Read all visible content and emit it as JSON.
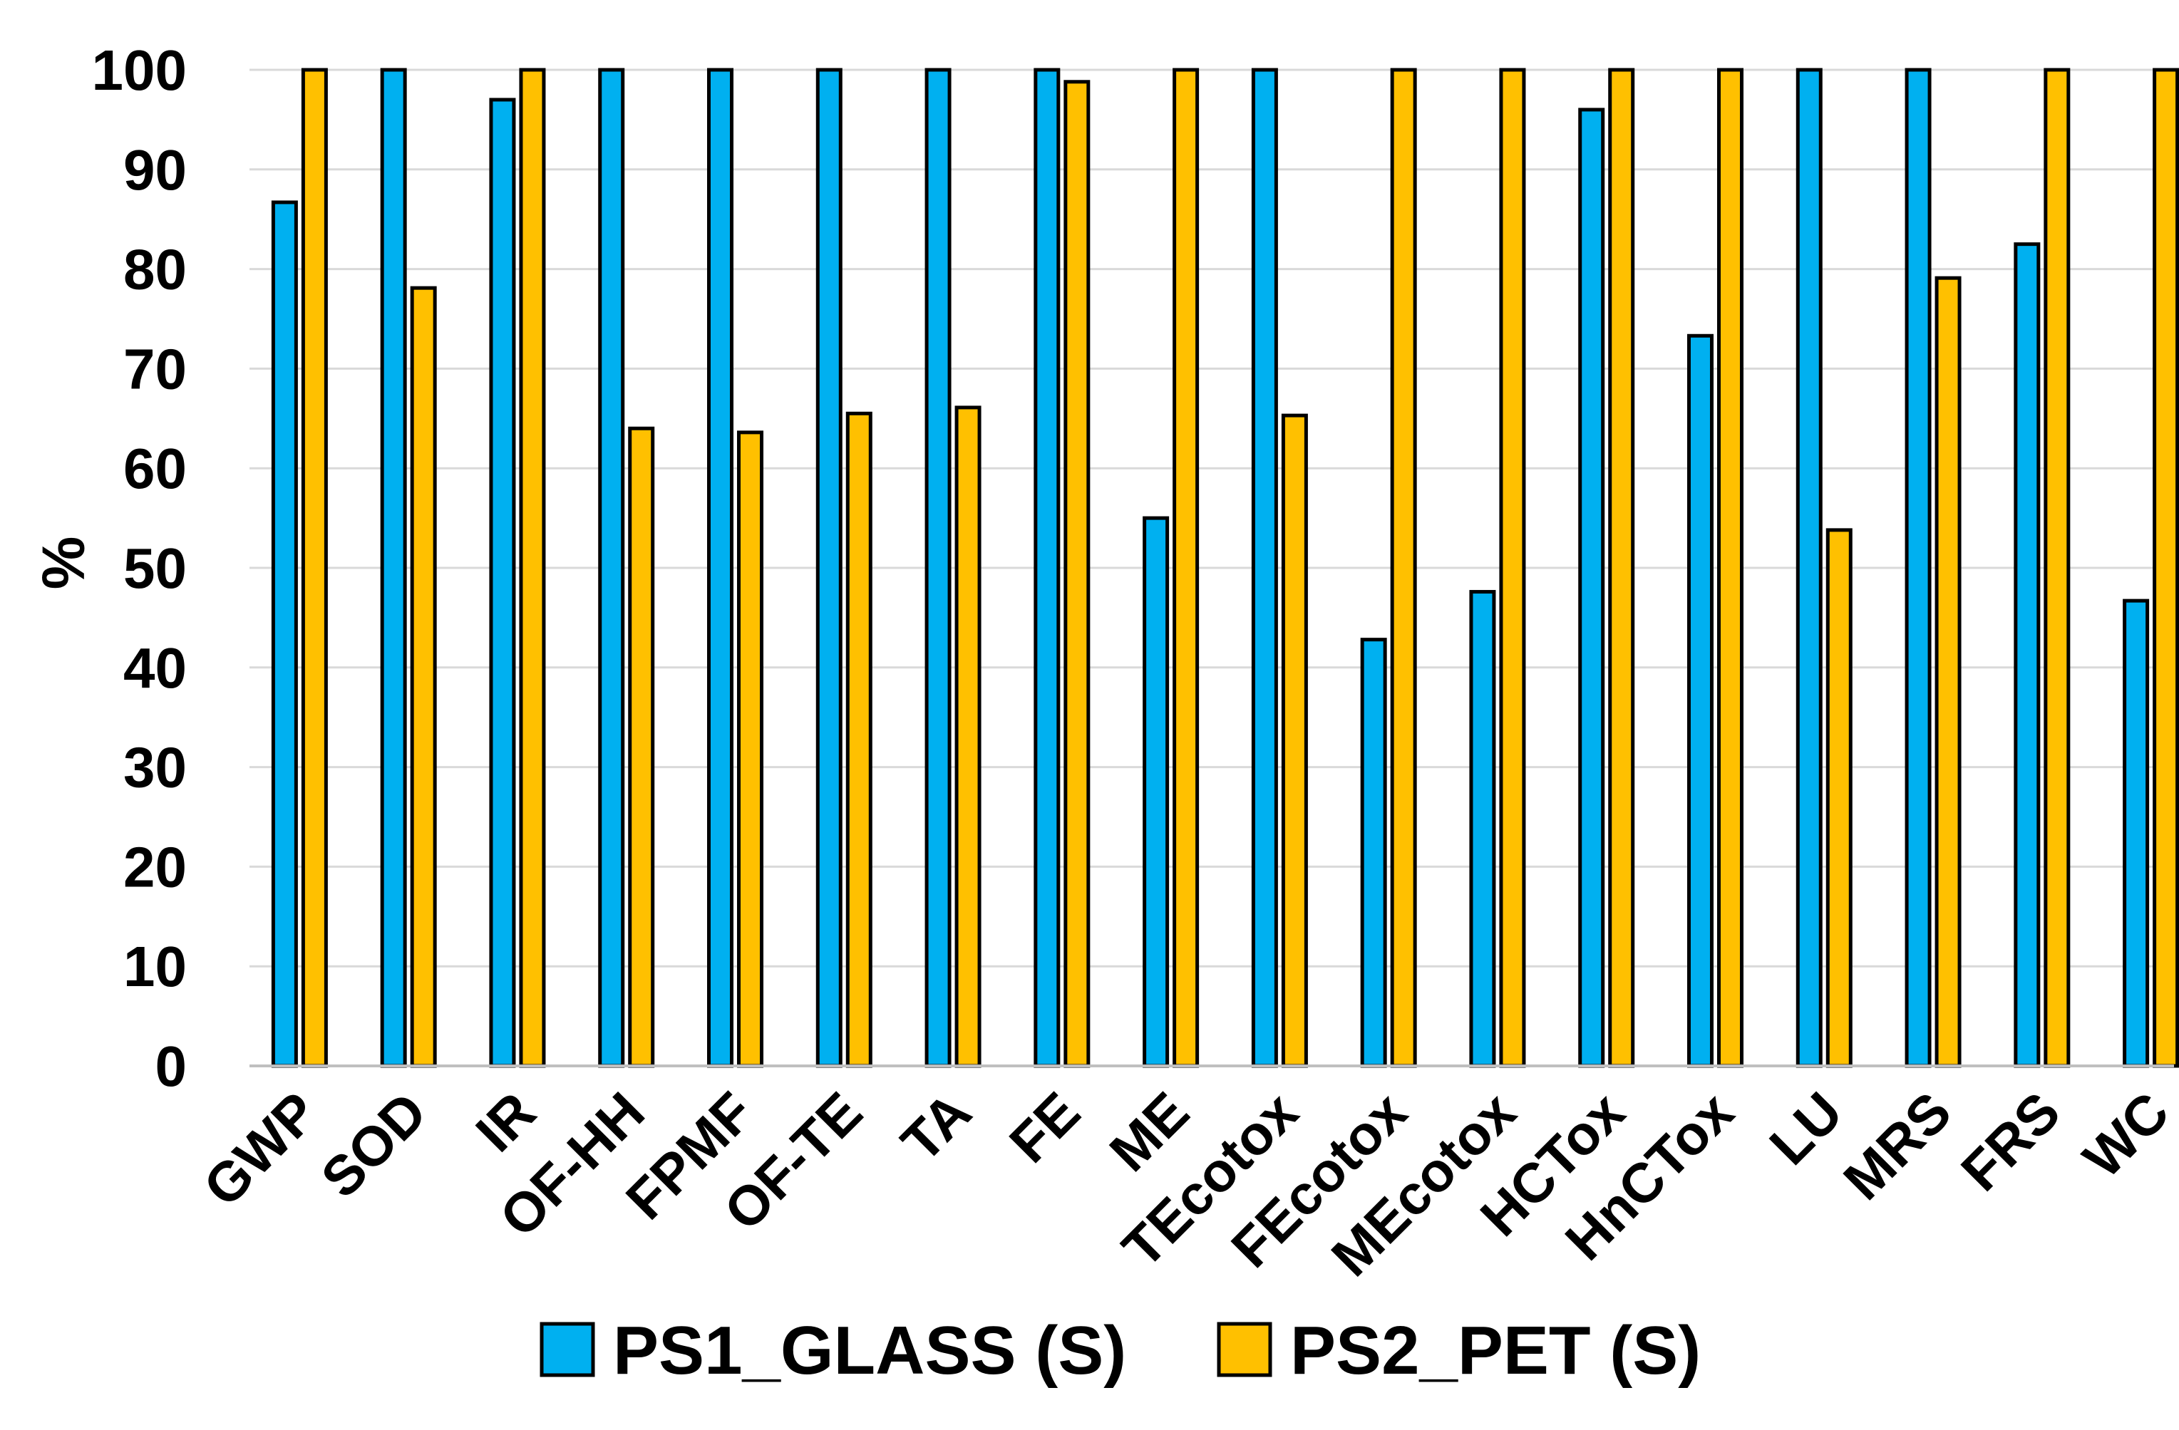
{
  "chart_data": {
    "type": "bar",
    "title": "",
    "xlabel": "",
    "ylabel": "%",
    "ylim": [
      0,
      100
    ],
    "yticks": [
      0,
      10,
      20,
      30,
      40,
      50,
      60,
      70,
      80,
      90,
      100
    ],
    "grid": true,
    "legend_position": "bottom",
    "categories": [
      "GWP",
      "SOD",
      "IR",
      "OF-HH",
      "FPMF",
      "OF-TE",
      "TA",
      "FE",
      "ME",
      "TEcotox",
      "FEcotox",
      "MEcotox",
      "HCTox",
      "HnCTox",
      "LU",
      "MRS",
      "FRS",
      "WC"
    ],
    "series": [
      {
        "name": "PS1_GLASS (S)",
        "color": "#00b0f0",
        "values": [
          86.7,
          100,
          97,
          100,
          100,
          100,
          100,
          100,
          55,
          100,
          42.8,
          47.6,
          96,
          73.3,
          100,
          100,
          82.5,
          46.7
        ]
      },
      {
        "name": "PS2_PET (S)",
        "color": "#ffc000",
        "values": [
          100,
          78.1,
          100,
          64,
          63.6,
          65.5,
          66.1,
          98.8,
          100,
          65.3,
          100,
          100,
          100,
          100,
          53.8,
          79.1,
          100,
          100
        ]
      }
    ]
  }
}
